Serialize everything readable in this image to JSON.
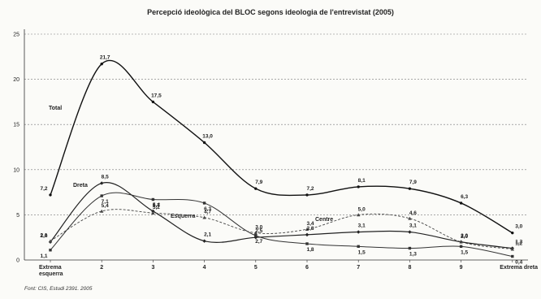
{
  "chart_data": {
    "type": "line",
    "title": "Percepció ideològica del BLOC segons ideologia de l'entrevistat (2005)",
    "source": "Font: CIS, Estudi 2391. 2005",
    "categories": [
      "Extrema\nesquerra",
      "2",
      "3",
      "4",
      "5",
      "6",
      "7",
      "8",
      "9",
      "Extrema dreta"
    ],
    "ylim": [
      0,
      25
    ],
    "yticks": [
      "0",
      "5",
      "10",
      "15",
      "20",
      "25"
    ],
    "grid": true,
    "series": [
      {
        "name": "Total",
        "values": [
          7.2,
          21.7,
          17.5,
          13.0,
          7.9,
          7.2,
          8.1,
          7.9,
          6.3,
          3.0
        ],
        "labels": [
          "7,2",
          "21,7",
          "17,5",
          "13,0",
          "7,9",
          "7,2",
          "8,1",
          "7,9",
          "6,3",
          "3,0"
        ],
        "color": "#111111",
        "width": 1.4,
        "dash": ""
      },
      {
        "name": "Dreta",
        "values": [
          2.0,
          8.5,
          5.4,
          2.1,
          2.5,
          2.8,
          3.1,
          3.1,
          2.0,
          1.3
        ],
        "labels": [
          "2,0",
          "8,5",
          "5,4",
          "2,1",
          "2,5",
          "2,8",
          "3,1",
          "3,1",
          "2,0",
          "1,3"
        ],
        "color": "#222222",
        "width": 1.2,
        "dash": ""
      },
      {
        "name": "Esquerra",
        "values": [
          1.1,
          7.1,
          6.7,
          6.3,
          2.7,
          1.8,
          1.5,
          1.3,
          1.5,
          0.4
        ],
        "labels": [
          "1,1",
          "7,1",
          "6,7",
          "6,3",
          "2,7",
          "1,8",
          "1,5",
          "1,3",
          "1,5",
          "0,4"
        ],
        "color": "#333333",
        "width": 1.0,
        "dash": ""
      },
      {
        "name": "Centre",
        "values": [
          2.1,
          5.4,
          5.2,
          4.7,
          3.0,
          3.4,
          5.0,
          4.6,
          2.0,
          1.2
        ],
        "labels": [
          "2,1",
          "5,4",
          "5,2",
          "4,7",
          "3,0",
          "3,4",
          "5,0",
          "4,6",
          "2,0",
          "1,2"
        ],
        "color": "#444444",
        "width": 0.9,
        "dash": "3,2"
      }
    ]
  }
}
